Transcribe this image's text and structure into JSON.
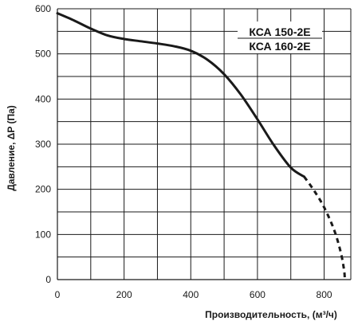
{
  "chart_data": {
    "type": "line",
    "xlabel": "Производительность, (м³/ч)",
    "ylabel": "Давление, ΔP (Па)",
    "xlim": [
      0,
      880
    ],
    "ylim": [
      0,
      600
    ],
    "x_ticks": [
      0,
      200,
      400,
      600,
      800
    ],
    "y_ticks": [
      0,
      100,
      200,
      300,
      400,
      500,
      600
    ],
    "x_tick_labels": [
      "0",
      "200",
      "400",
      "600",
      "800"
    ],
    "y_tick_labels": [
      "0",
      "100",
      "200",
      "300",
      "400",
      "500",
      "600"
    ],
    "x_grid_step": 100,
    "y_grid_step": 50,
    "grid": true,
    "legend_position": "top-right",
    "legend": [
      "КСА 150-2Е",
      "КСА 160-2Е"
    ],
    "series": [
      {
        "solid": [
          [
            0,
            590
          ],
          [
            50,
            574
          ],
          [
            100,
            556
          ],
          [
            150,
            541
          ],
          [
            200,
            533
          ],
          [
            250,
            528
          ],
          [
            300,
            523
          ],
          [
            350,
            517
          ],
          [
            400,
            507
          ],
          [
            450,
            487
          ],
          [
            500,
            455
          ],
          [
            550,
            410
          ],
          [
            600,
            355
          ],
          [
            650,
            297
          ],
          [
            700,
            248
          ],
          [
            740,
            228
          ]
        ],
        "dashed": [
          [
            740,
            228
          ],
          [
            770,
            197
          ],
          [
            800,
            160
          ],
          [
            830,
            110
          ],
          [
            850,
            60
          ],
          [
            860,
            20
          ],
          [
            862,
            0
          ]
        ]
      }
    ],
    "colors": {
      "line": "#1a1a1a",
      "grid": "#1a1a1a"
    }
  }
}
